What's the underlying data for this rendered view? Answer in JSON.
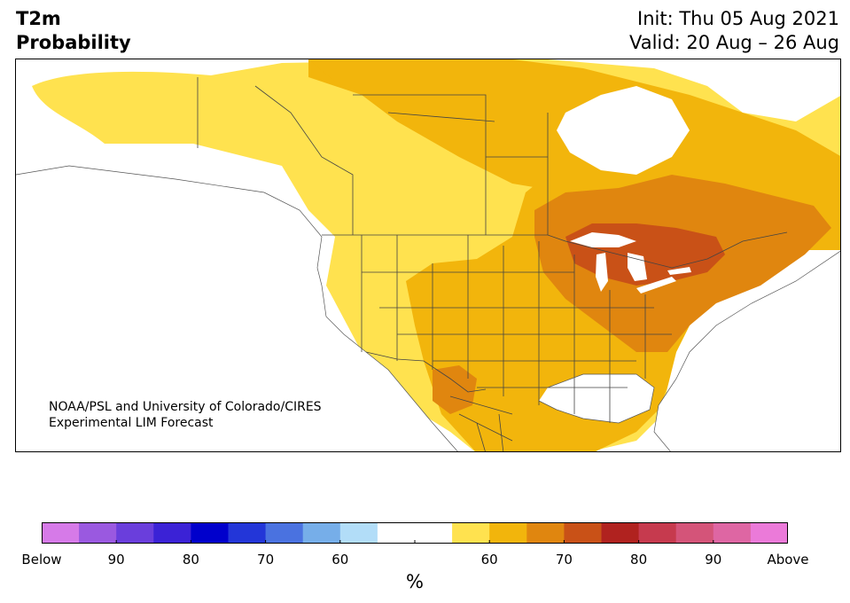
{
  "title": {
    "variable": "T2m",
    "type": "Probability",
    "init": "Init: Thu 05 Aug 2021",
    "valid": "Valid: 20 Aug – 26 Aug"
  },
  "credit": {
    "line1": "NOAA/PSL and University of Colorado/CIRES",
    "line2": "Experimental LIM Forecast"
  },
  "colorbar": {
    "unit": "%",
    "colors": [
      "#d67ae8",
      "#9a59e0",
      "#6a3edc",
      "#3b22d6",
      "#0000cc",
      "#2336d8",
      "#4a72e0",
      "#76aee9",
      "#b2ddf8",
      "#ffffff",
      "#ffffff",
      "#ffe24f",
      "#f2b50c",
      "#e0860f",
      "#c95117",
      "#b0221f",
      "#c63a4e",
      "#d45479",
      "#de66a3",
      "#eb7ad9"
    ],
    "ticks": [
      {
        "label": "Below",
        "index": 0
      },
      {
        "label": "90",
        "index": 2
      },
      {
        "label": "80",
        "index": 4
      },
      {
        "label": "70",
        "index": 6
      },
      {
        "label": "60",
        "index": 8
      },
      {
        "label": "",
        "index": 10
      },
      {
        "label": "60",
        "index": 12
      },
      {
        "label": "70",
        "index": 14
      },
      {
        "label": "80",
        "index": 16
      },
      {
        "label": "90",
        "index": 18
      },
      {
        "label": "Above",
        "index": 20
      }
    ]
  },
  "map": {
    "land_color": "#ffffff",
    "border_color": "#444444",
    "categories": {
      "above_50_60": "#ffe24f",
      "above_60_70": "#f2b50c",
      "above_70_80": "#e0860f",
      "above_80_90": "#c95117"
    }
  }
}
